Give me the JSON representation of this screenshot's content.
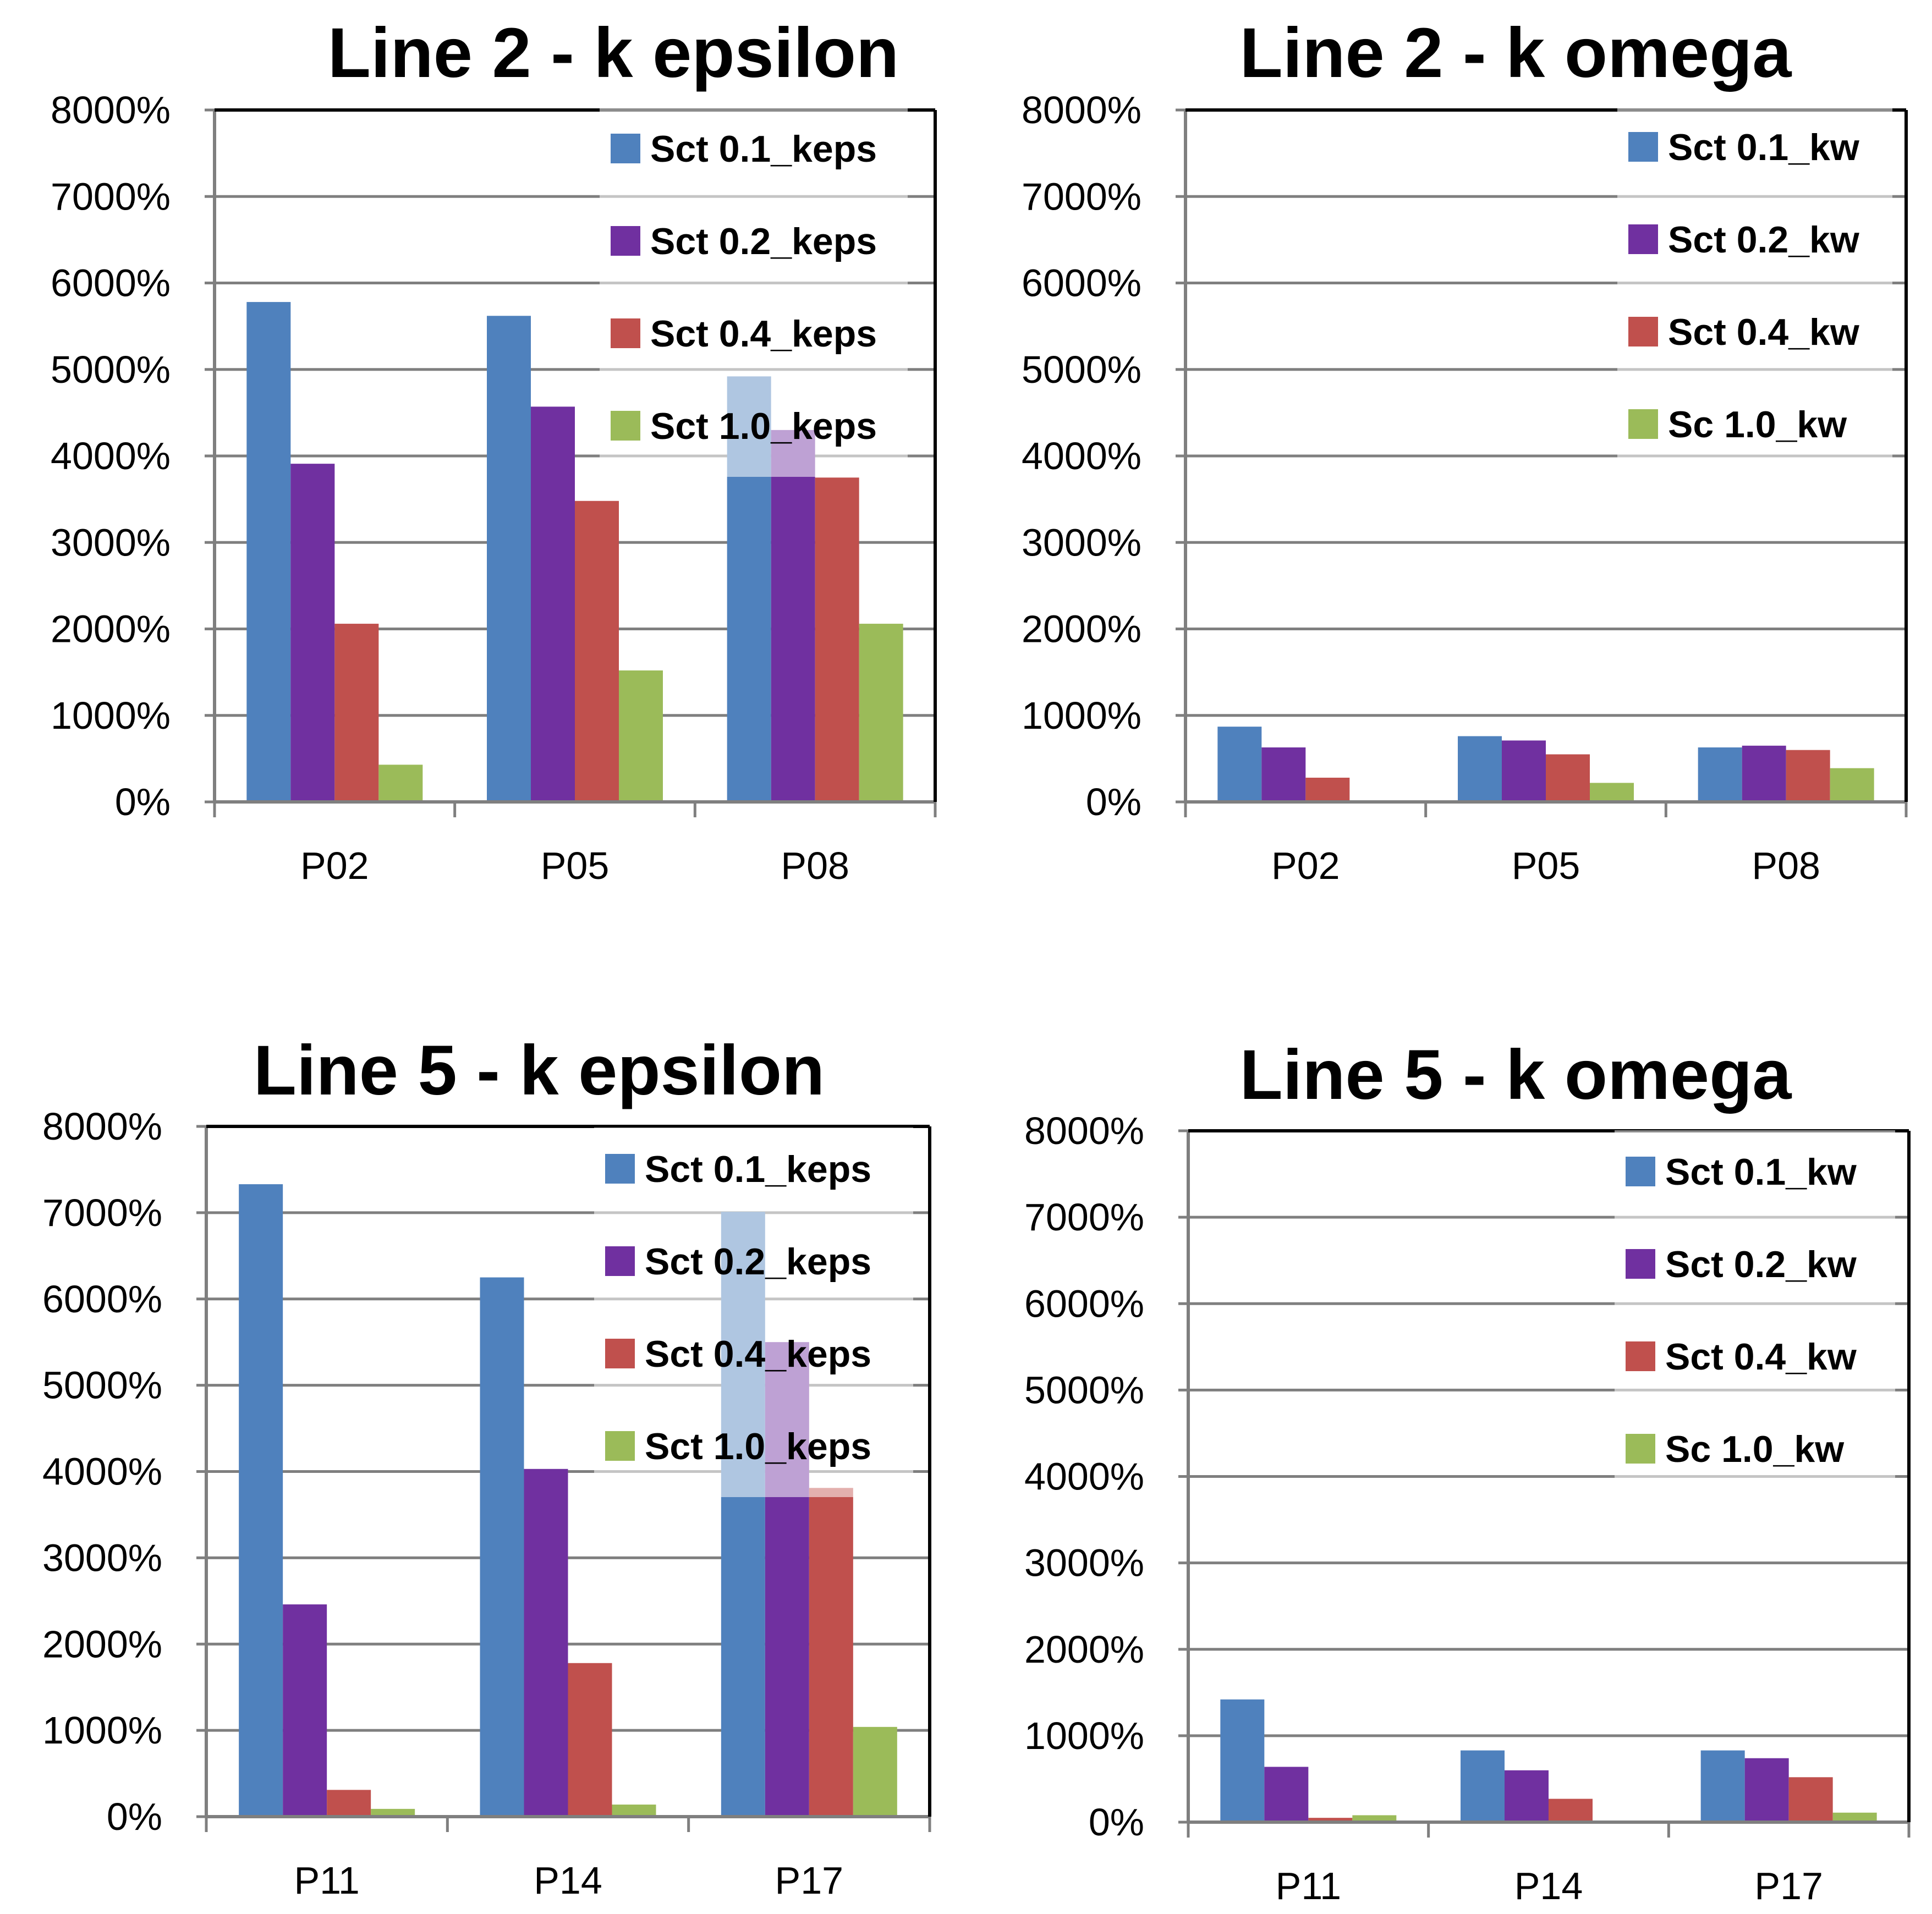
{
  "chart_data": [
    {
      "type": "bar",
      "title": "Line 2 - k epsilon",
      "categories": [
        "P02",
        "P05",
        "P08"
      ],
      "ylim": [
        0,
        8000
      ],
      "yticks": [
        "0%",
        "1000%",
        "2000%",
        "3000%",
        "4000%",
        "5000%",
        "6000%",
        "7000%",
        "8000%"
      ],
      "grid": true,
      "legend_position": "top-right",
      "series": [
        {
          "name": "Sct 0.1_keps",
          "color": "#4F81BD",
          "values": [
            5780,
            5620,
            4920
          ]
        },
        {
          "name": "Sct 0.2_keps",
          "color": "#7030A0",
          "values": [
            3910,
            4570,
            4300
          ]
        },
        {
          "name": "Sct 0.4_keps",
          "color": "#C0504D",
          "values": [
            2060,
            3480,
            3750
          ]
        },
        {
          "name": "Sct 1.0_keps",
          "color": "#9BBB59",
          "values": [
            430,
            1520,
            2060
          ]
        }
      ]
    },
    {
      "type": "bar",
      "title": "Line 2 - k omega",
      "categories": [
        "P02",
        "P05",
        "P08"
      ],
      "ylim": [
        0,
        8000
      ],
      "yticks": [
        "0%",
        "1000%",
        "2000%",
        "3000%",
        "4000%",
        "5000%",
        "6000%",
        "7000%",
        "8000%"
      ],
      "grid": true,
      "legend_position": "top-right",
      "series": [
        {
          "name": "Sct 0.1_kw",
          "color": "#4F81BD",
          "values": [
            870,
            760,
            630
          ]
        },
        {
          "name": "Sct 0.2_kw",
          "color": "#7030A0",
          "values": [
            630,
            710,
            650
          ]
        },
        {
          "name": "Sct 0.4_kw",
          "color": "#C0504D",
          "values": [
            280,
            550,
            600
          ]
        },
        {
          "name": "Sc 1.0_kw",
          "color": "#9BBB59",
          "values": [
            0,
            220,
            390
          ]
        }
      ]
    },
    {
      "type": "bar",
      "title": "Line 5 - k epsilon",
      "categories": [
        "P11",
        "P14",
        "P17"
      ],
      "ylim": [
        0,
        8000
      ],
      "yticks": [
        "0%",
        "1000%",
        "2000%",
        "3000%",
        "4000%",
        "5000%",
        "6000%",
        "7000%",
        "8000%"
      ],
      "grid": true,
      "legend_position": "top-right",
      "series": [
        {
          "name": "Sct 0.1_keps",
          "color": "#4F81BD",
          "values": [
            7330,
            6250,
            7010
          ]
        },
        {
          "name": "Sct 0.2_keps",
          "color": "#7030A0",
          "values": [
            2460,
            4030,
            5500
          ]
        },
        {
          "name": "Sct 0.4_keps",
          "color": "#C0504D",
          "values": [
            310,
            1780,
            3810
          ]
        },
        {
          "name": "Sct 1.0_keps",
          "color": "#9BBB59",
          "values": [
            90,
            140,
            1040
          ]
        }
      ]
    },
    {
      "type": "bar",
      "title": "Line 5 - k omega",
      "categories": [
        "P11",
        "P14",
        "P17"
      ],
      "ylim": [
        0,
        8000
      ],
      "yticks": [
        "0%",
        "1000%",
        "2000%",
        "3000%",
        "4000%",
        "5000%",
        "6000%",
        "7000%",
        "8000%"
      ],
      "grid": true,
      "legend_position": "top-right",
      "series": [
        {
          "name": "Sct 0.1_kw",
          "color": "#4F81BD",
          "values": [
            1420,
            830,
            830
          ]
        },
        {
          "name": "Sct 0.2_kw",
          "color": "#7030A0",
          "values": [
            640,
            600,
            740
          ]
        },
        {
          "name": "Sct 0.4_kw",
          "color": "#C0504D",
          "values": [
            50,
            270,
            520
          ]
        },
        {
          "name": "Sc 1.0_kw",
          "color": "#9BBB59",
          "values": [
            80,
            10,
            110
          ]
        }
      ]
    }
  ]
}
